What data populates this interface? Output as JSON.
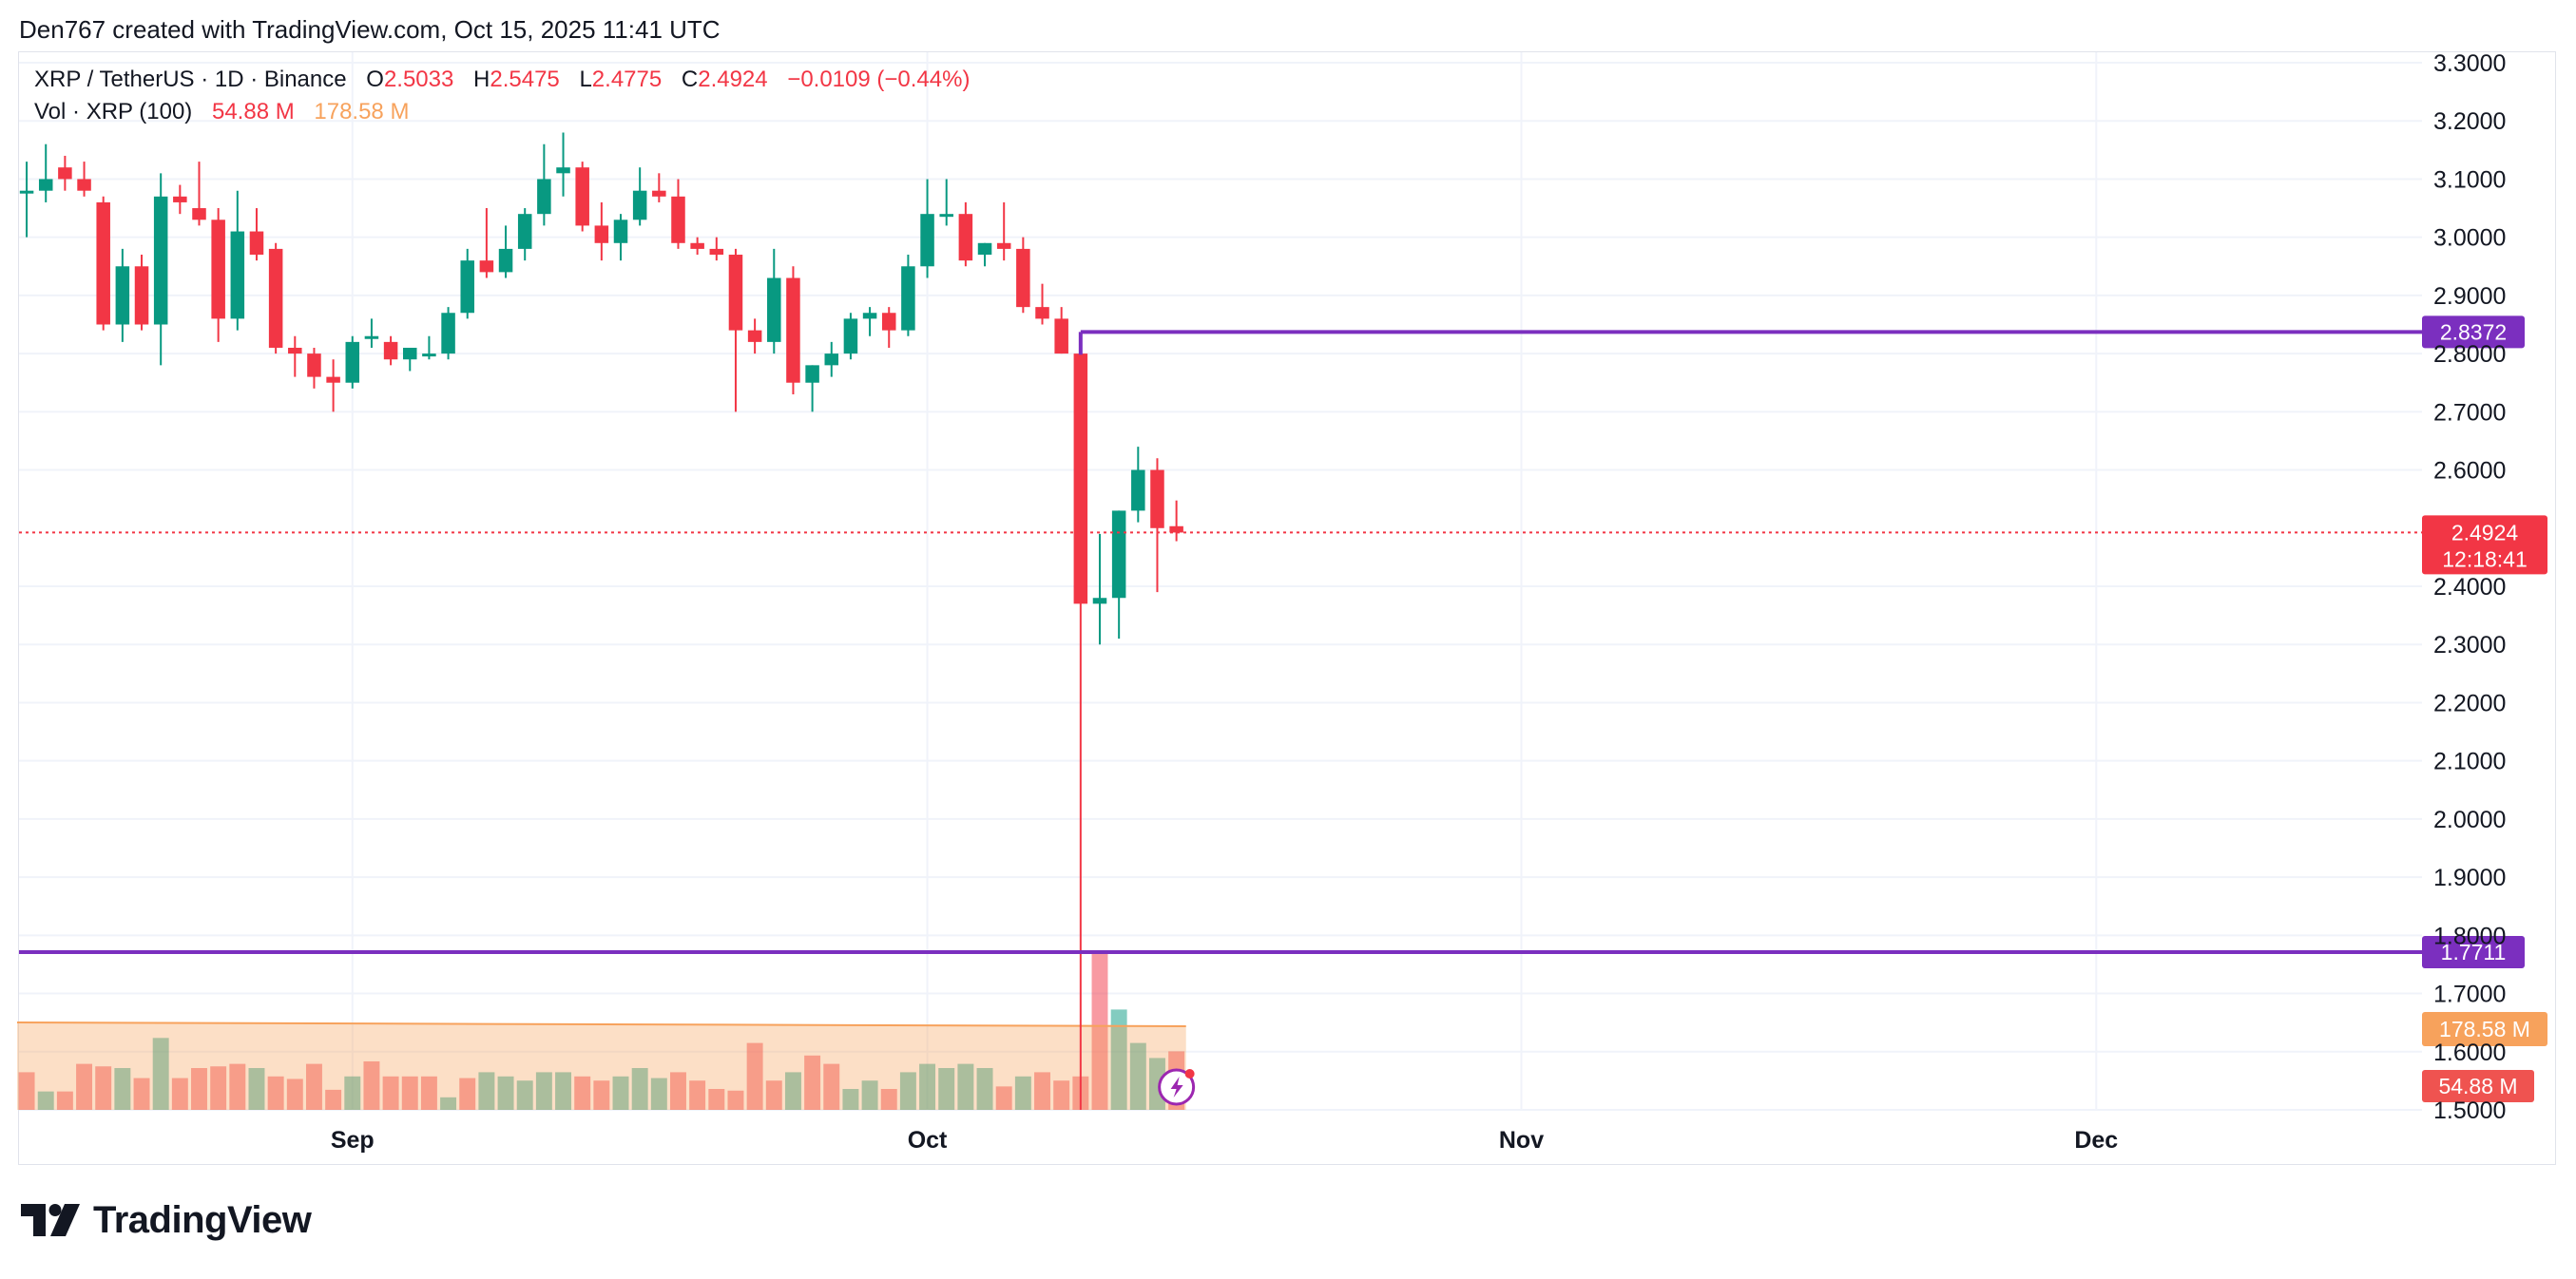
{
  "credit": "Den767 created with TradingView.com, Oct 15, 2025 11:41 UTC",
  "legend": {
    "symbol": "XRP / TetherUS · 1D · Binance",
    "open_label": "O",
    "open": "2.5033",
    "high_label": "H",
    "high": "2.5475",
    "low_label": "L",
    "low": "2.4775",
    "close_label": "C",
    "close": "2.4924",
    "change": "−0.0109 (−0.44%)",
    "vol_label": "Vol · XRP (100)",
    "vol_value": "54.88 M",
    "vol_ma": "178.58 M"
  },
  "brand": "TradingView",
  "colors": {
    "up": "#089981",
    "down": "#f23645",
    "level": "#7b2fbf",
    "ma": "#f7a25c"
  },
  "chart_data": {
    "type": "candlestick",
    "title": "XRP / TetherUS · 1D · Binance",
    "xlabel": "",
    "ylabel": "",
    "ylim": [
      1.5,
      3.3
    ],
    "y_ticks": [
      "3.3000",
      "3.2000",
      "3.1000",
      "3.0000",
      "2.9000",
      "2.8000",
      "2.7000",
      "2.6000",
      "2.4000",
      "2.3000",
      "2.2000",
      "2.1000",
      "2.0000",
      "1.9000",
      "1.8000",
      "1.7000",
      "1.6000",
      "1.5000"
    ],
    "x_ticks": [
      {
        "label": "Sep",
        "day": 27
      },
      {
        "label": "Oct",
        "day": 57
      },
      {
        "label": "Nov",
        "day": 88
      },
      {
        "label": "Dec",
        "day": 118
      }
    ],
    "day_range": [
      9.6,
      135
    ],
    "candles": [
      [
        10,
        3.08,
        3.13,
        3.0,
        3.08
      ],
      [
        11,
        3.08,
        3.16,
        3.06,
        3.1
      ],
      [
        12,
        3.12,
        3.14,
        3.08,
        3.1
      ],
      [
        13,
        3.1,
        3.13,
        3.07,
        3.08
      ],
      [
        14,
        3.06,
        3.07,
        2.84,
        2.85
      ],
      [
        15,
        2.85,
        2.98,
        2.82,
        2.95
      ],
      [
        16,
        2.95,
        2.97,
        2.84,
        2.85
      ],
      [
        17,
        2.85,
        3.11,
        2.78,
        3.07
      ],
      [
        18,
        3.07,
        3.09,
        3.04,
        3.06
      ],
      [
        19,
        3.05,
        3.13,
        3.02,
        3.03
      ],
      [
        20,
        3.03,
        3.05,
        2.82,
        2.86
      ],
      [
        21,
        2.86,
        3.08,
        2.84,
        3.01
      ],
      [
        22,
        3.01,
        3.05,
        2.96,
        2.97
      ],
      [
        23,
        2.98,
        2.99,
        2.8,
        2.81
      ],
      [
        24,
        2.81,
        2.83,
        2.76,
        2.8
      ],
      [
        25,
        2.8,
        2.81,
        2.74,
        2.76
      ],
      [
        26,
        2.76,
        2.79,
        2.7,
        2.75
      ],
      [
        27,
        2.75,
        2.83,
        2.74,
        2.82
      ],
      [
        28,
        2.83,
        2.86,
        2.81,
        2.83
      ],
      [
        29,
        2.82,
        2.83,
        2.78,
        2.79
      ],
      [
        30,
        2.79,
        2.8,
        2.77,
        2.81
      ],
      [
        31,
        2.8,
        2.83,
        2.79,
        2.8
      ],
      [
        32,
        2.8,
        2.88,
        2.79,
        2.87
      ],
      [
        33,
        2.87,
        2.98,
        2.86,
        2.96
      ],
      [
        34,
        2.96,
        3.05,
        2.93,
        2.94
      ],
      [
        35,
        2.94,
        3.02,
        2.93,
        2.98
      ],
      [
        36,
        2.98,
        3.05,
        2.96,
        3.04
      ],
      [
        37,
        3.04,
        3.16,
        3.02,
        3.1
      ],
      [
        38,
        3.11,
        3.18,
        3.07,
        3.12
      ],
      [
        39,
        3.12,
        3.13,
        3.01,
        3.02
      ],
      [
        40,
        3.02,
        3.06,
        2.96,
        2.99
      ],
      [
        41,
        2.99,
        3.04,
        2.96,
        3.03
      ],
      [
        42,
        3.03,
        3.12,
        3.02,
        3.08
      ],
      [
        43,
        3.08,
        3.11,
        3.06,
        3.07
      ],
      [
        44,
        3.07,
        3.1,
        2.98,
        2.99
      ],
      [
        45,
        2.99,
        3.0,
        2.97,
        2.98
      ],
      [
        46,
        2.98,
        3.0,
        2.96,
        2.97
      ],
      [
        47,
        2.97,
        2.98,
        2.7,
        2.84
      ],
      [
        48,
        2.84,
        2.86,
        2.8,
        2.82
      ],
      [
        49,
        2.82,
        2.98,
        2.8,
        2.93
      ],
      [
        50,
        2.93,
        2.95,
        2.73,
        2.75
      ],
      [
        51,
        2.75,
        2.78,
        2.7,
        2.78
      ],
      [
        52,
        2.78,
        2.82,
        2.76,
        2.8
      ],
      [
        53,
        2.8,
        2.87,
        2.79,
        2.86
      ],
      [
        54,
        2.86,
        2.88,
        2.83,
        2.87
      ],
      [
        55,
        2.87,
        2.88,
        2.81,
        2.84
      ],
      [
        56,
        2.84,
        2.97,
        2.83,
        2.95
      ],
      [
        57,
        2.95,
        3.1,
        2.93,
        3.04
      ],
      [
        58,
        3.04,
        3.1,
        3.02,
        3.04
      ],
      [
        59,
        3.04,
        3.06,
        2.95,
        2.96
      ],
      [
        60,
        2.97,
        2.99,
        2.95,
        2.99
      ],
      [
        61,
        2.99,
        3.06,
        2.96,
        2.98
      ],
      [
        62,
        2.98,
        3.0,
        2.87,
        2.88
      ],
      [
        63,
        2.88,
        2.92,
        2.85,
        2.86
      ],
      [
        64,
        2.86,
        2.88,
        2.8,
        2.8
      ],
      [
        65,
        2.8,
        2.82,
        1.5,
        2.37
      ],
      [
        66,
        2.37,
        2.49,
        2.3,
        2.38
      ],
      [
        67,
        2.38,
        2.53,
        2.31,
        2.53
      ],
      [
        68,
        2.53,
        2.64,
        2.51,
        2.6
      ],
      [
        69,
        2.6,
        2.62,
        2.39,
        2.5
      ],
      [
        70,
        2.5033,
        2.5475,
        2.4775,
        2.4924
      ]
    ],
    "volume": {
      "ma_label": "178.58 M",
      "values": [
        [
          10,
          0.45,
          "dn"
        ],
        [
          11,
          0.22,
          "up"
        ],
        [
          12,
          0.22,
          "dn"
        ],
        [
          13,
          0.55,
          "dn"
        ],
        [
          14,
          0.52,
          "dn"
        ],
        [
          15,
          0.5,
          "up"
        ],
        [
          16,
          0.38,
          "dn"
        ],
        [
          17,
          0.86,
          "up"
        ],
        [
          18,
          0.38,
          "dn"
        ],
        [
          19,
          0.5,
          "dn"
        ],
        [
          20,
          0.52,
          "dn"
        ],
        [
          21,
          0.55,
          "dn"
        ],
        [
          22,
          0.5,
          "up"
        ],
        [
          23,
          0.4,
          "dn"
        ],
        [
          24,
          0.37,
          "dn"
        ],
        [
          25,
          0.55,
          "dn"
        ],
        [
          26,
          0.24,
          "dn"
        ],
        [
          27,
          0.4,
          "up"
        ],
        [
          28,
          0.58,
          "dn"
        ],
        [
          29,
          0.4,
          "dn"
        ],
        [
          30,
          0.4,
          "dn"
        ],
        [
          31,
          0.4,
          "dn"
        ],
        [
          32,
          0.15,
          "up"
        ],
        [
          33,
          0.38,
          "dn"
        ],
        [
          34,
          0.45,
          "up"
        ],
        [
          35,
          0.4,
          "up"
        ],
        [
          36,
          0.35,
          "up"
        ],
        [
          37,
          0.45,
          "up"
        ],
        [
          38,
          0.45,
          "up"
        ],
        [
          39,
          0.4,
          "dn"
        ],
        [
          40,
          0.35,
          "dn"
        ],
        [
          41,
          0.4,
          "up"
        ],
        [
          42,
          0.5,
          "up"
        ],
        [
          43,
          0.38,
          "up"
        ],
        [
          44,
          0.45,
          "dn"
        ],
        [
          45,
          0.35,
          "dn"
        ],
        [
          46,
          0.25,
          "dn"
        ],
        [
          47,
          0.23,
          "dn"
        ],
        [
          48,
          0.8,
          "dn"
        ],
        [
          49,
          0.35,
          "dn"
        ],
        [
          50,
          0.45,
          "up"
        ],
        [
          51,
          0.65,
          "dn"
        ],
        [
          52,
          0.55,
          "dn"
        ],
        [
          53,
          0.25,
          "up"
        ],
        [
          54,
          0.35,
          "up"
        ],
        [
          55,
          0.25,
          "dn"
        ],
        [
          56,
          0.45,
          "up"
        ],
        [
          57,
          0.55,
          "up"
        ],
        [
          58,
          0.5,
          "up"
        ],
        [
          59,
          0.55,
          "up"
        ],
        [
          60,
          0.5,
          "up"
        ],
        [
          61,
          0.28,
          "dn"
        ],
        [
          62,
          0.4,
          "up"
        ],
        [
          63,
          0.45,
          "dn"
        ],
        [
          64,
          0.35,
          "dn"
        ],
        [
          65,
          0.4,
          "dn"
        ],
        [
          66,
          1.9,
          "dn"
        ],
        [
          67,
          1.2,
          "up"
        ],
        [
          68,
          0.8,
          "up"
        ],
        [
          69,
          0.62,
          "up"
        ],
        [
          70,
          0.7,
          "dn"
        ]
      ]
    },
    "levels": [
      {
        "price": 2.8372,
        "label": "2.8372",
        "from_day": 65
      },
      {
        "price": 1.7711,
        "label": "1.7711",
        "from_day": 9.6
      }
    ],
    "last_price": {
      "label": "2.4924",
      "countdown": "12:18:41",
      "price": 2.4924
    }
  }
}
